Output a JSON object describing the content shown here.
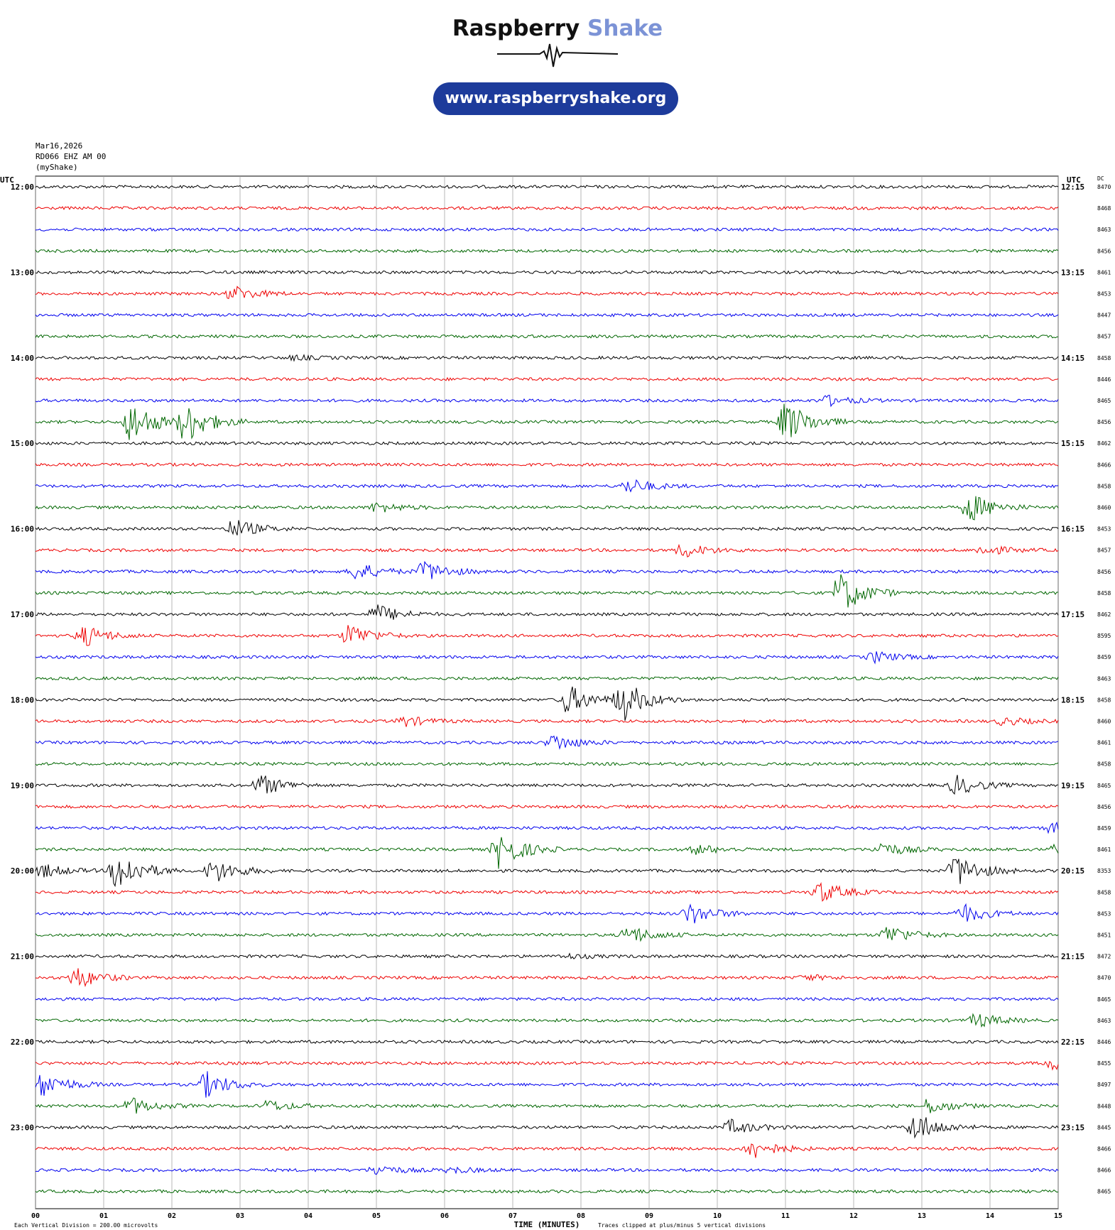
{
  "brand": {
    "name_part1": "Raspberry",
    "name_part2": "Shake",
    "url": "www.raspberryshake.org",
    "colors": {
      "dark": "#111111",
      "light": "#7c93d6",
      "pill": "#1d3b9b"
    }
  },
  "station": {
    "date": "Mar16,2026",
    "channel": "RD066 EHZ AM 00",
    "source": "(myShake)"
  },
  "chart_data": {
    "type": "line",
    "subtype": "helicorder",
    "title": "",
    "xlabel": "TIME (MINUTES)",
    "ylabel": "",
    "left_axis_title": "UTC",
    "right_axis_title": "UTC",
    "dc_label": "DC",
    "x_ticks": [
      "00",
      "01",
      "02",
      "03",
      "04",
      "05",
      "06",
      "07",
      "08",
      "09",
      "10",
      "11",
      "12",
      "13",
      "14",
      "15"
    ],
    "xlim": [
      0,
      15
    ],
    "grid": true,
    "left_time_labels": [
      "12:00",
      "13:00",
      "14:00",
      "15:00",
      "16:00",
      "17:00",
      "18:00",
      "19:00",
      "20:00",
      "21:00",
      "22:00",
      "23:00"
    ],
    "right_time_labels": [
      "12:15",
      "13:15",
      "14:15",
      "15:15",
      "16:15",
      "17:15",
      "18:15",
      "19:15",
      "20:15",
      "21:15",
      "22:15",
      "23:15"
    ],
    "dc_values": [
      "8470",
      "8468",
      "8463",
      "8456",
      "8461",
      "8453",
      "8447",
      "8457",
      "8458",
      "8446",
      "8465",
      "8456",
      "8462",
      "8466",
      "8458",
      "8460",
      "8453",
      "8457",
      "8456",
      "8458",
      "8462",
      "8595",
      "8459",
      "8463",
      "8458",
      "8460",
      "8461",
      "8458",
      "8465",
      "8456",
      "8459",
      "8461",
      "8353",
      "8458",
      "8453",
      "8451",
      "8472",
      "8470",
      "8465",
      "8463",
      "8446",
      "8455",
      "8497",
      "8448",
      "8445",
      "8466",
      "8466",
      "8465"
    ],
    "trace_colors": [
      "#000000",
      "#ee0000",
      "#0000ee",
      "#006600"
    ],
    "traces_per_hour": 4,
    "minutes_per_trace": 15,
    "events": [
      {
        "trace": 5,
        "minute": 2.9,
        "amplitude": 1.8
      },
      {
        "trace": 8,
        "minute": 3.8,
        "amplitude": 0.5
      },
      {
        "trace": 11,
        "minute": 1.4,
        "amplitude": 5.0
      },
      {
        "trace": 11,
        "minute": 2.2,
        "amplitude": 5.0
      },
      {
        "trace": 11,
        "minute": 11.0,
        "amplitude": 5.0
      },
      {
        "trace": 10,
        "minute": 11.6,
        "amplitude": 1.2
      },
      {
        "trace": 14,
        "minute": 8.7,
        "amplitude": 1.8
      },
      {
        "trace": 15,
        "minute": 5.0,
        "amplitude": 1.2
      },
      {
        "trace": 15,
        "minute": 13.7,
        "amplitude": 3.5
      },
      {
        "trace": 16,
        "minute": 2.9,
        "amplitude": 2.3
      },
      {
        "trace": 17,
        "minute": 9.5,
        "amplitude": 1.7
      },
      {
        "trace": 17,
        "minute": 13.9,
        "amplitude": 1.2
      },
      {
        "trace": 18,
        "minute": 4.7,
        "amplitude": 2.2
      },
      {
        "trace": 18,
        "minute": 5.7,
        "amplitude": 2.5
      },
      {
        "trace": 19,
        "minute": 11.8,
        "amplitude": 5.0
      },
      {
        "trace": 20,
        "minute": 5.0,
        "amplitude": 2.3
      },
      {
        "trace": 21,
        "minute": 0.7,
        "amplitude": 2.5
      },
      {
        "trace": 21,
        "minute": 4.6,
        "amplitude": 2.8
      },
      {
        "trace": 22,
        "minute": 12.3,
        "amplitude": 1.3
      },
      {
        "trace": 24,
        "minute": 7.8,
        "amplitude": 3.5
      },
      {
        "trace": 24,
        "minute": 8.6,
        "amplitude": 5.0
      },
      {
        "trace": 25,
        "minute": 5.4,
        "amplitude": 1.2
      },
      {
        "trace": 25,
        "minute": 14.2,
        "amplitude": 0.9
      },
      {
        "trace": 26,
        "minute": 7.6,
        "amplitude": 2.0
      },
      {
        "trace": 28,
        "minute": 3.3,
        "amplitude": 2.5
      },
      {
        "trace": 28,
        "minute": 13.5,
        "amplitude": 2.3
      },
      {
        "trace": 30,
        "minute": 14.9,
        "amplitude": 1.2
      },
      {
        "trace": 31,
        "minute": 6.8,
        "amplitude": 4.5
      },
      {
        "trace": 31,
        "minute": 9.7,
        "amplitude": 1.1
      },
      {
        "trace": 31,
        "minute": 12.4,
        "amplitude": 1.7
      },
      {
        "trace": 31,
        "minute": 15.0,
        "amplitude": 1.5
      },
      {
        "trace": 32,
        "minute": 0.1,
        "amplitude": 1.6
      },
      {
        "trace": 32,
        "minute": 1.2,
        "amplitude": 5.0
      },
      {
        "trace": 32,
        "minute": 2.6,
        "amplitude": 3.0
      },
      {
        "trace": 32,
        "minute": 13.5,
        "amplitude": 4.0
      },
      {
        "trace": 33,
        "minute": 11.5,
        "amplitude": 2.5
      },
      {
        "trace": 34,
        "minute": 9.6,
        "amplitude": 2.5
      },
      {
        "trace": 34,
        "minute": 13.6,
        "amplitude": 2.2
      },
      {
        "trace": 35,
        "minute": 8.7,
        "amplitude": 2.2
      },
      {
        "trace": 35,
        "minute": 12.5,
        "amplitude": 2.3
      },
      {
        "trace": 36,
        "minute": 7.8,
        "amplitude": 0.5
      },
      {
        "trace": 37,
        "minute": 0.6,
        "amplitude": 2.5
      },
      {
        "trace": 37,
        "minute": 11.3,
        "amplitude": 0.6
      },
      {
        "trace": 39,
        "minute": 13.8,
        "amplitude": 1.7
      },
      {
        "trace": 41,
        "minute": 14.9,
        "amplitude": 1.5
      },
      {
        "trace": 42,
        "minute": 0.1,
        "amplitude": 3.0
      },
      {
        "trace": 42,
        "minute": 2.5,
        "amplitude": 3.0
      },
      {
        "trace": 43,
        "minute": 1.4,
        "amplitude": 2.0
      },
      {
        "trace": 43,
        "minute": 3.4,
        "amplitude": 1.3
      },
      {
        "trace": 43,
        "minute": 13.1,
        "amplitude": 1.8
      },
      {
        "trace": 44,
        "minute": 10.2,
        "amplitude": 1.7
      },
      {
        "trace": 44,
        "minute": 12.9,
        "amplitude": 3.5
      },
      {
        "trace": 45,
        "minute": 10.5,
        "amplitude": 2.5
      },
      {
        "trace": 46,
        "minute": 5.0,
        "amplitude": 1.2
      },
      {
        "trace": 46,
        "minute": 6.1,
        "amplitude": 0.7
      }
    ],
    "footnote_left": "Each Vertical Division =  200.00 microvolts",
    "footnote_right": "Traces clipped at plus/minus 5 vertical divisions"
  }
}
